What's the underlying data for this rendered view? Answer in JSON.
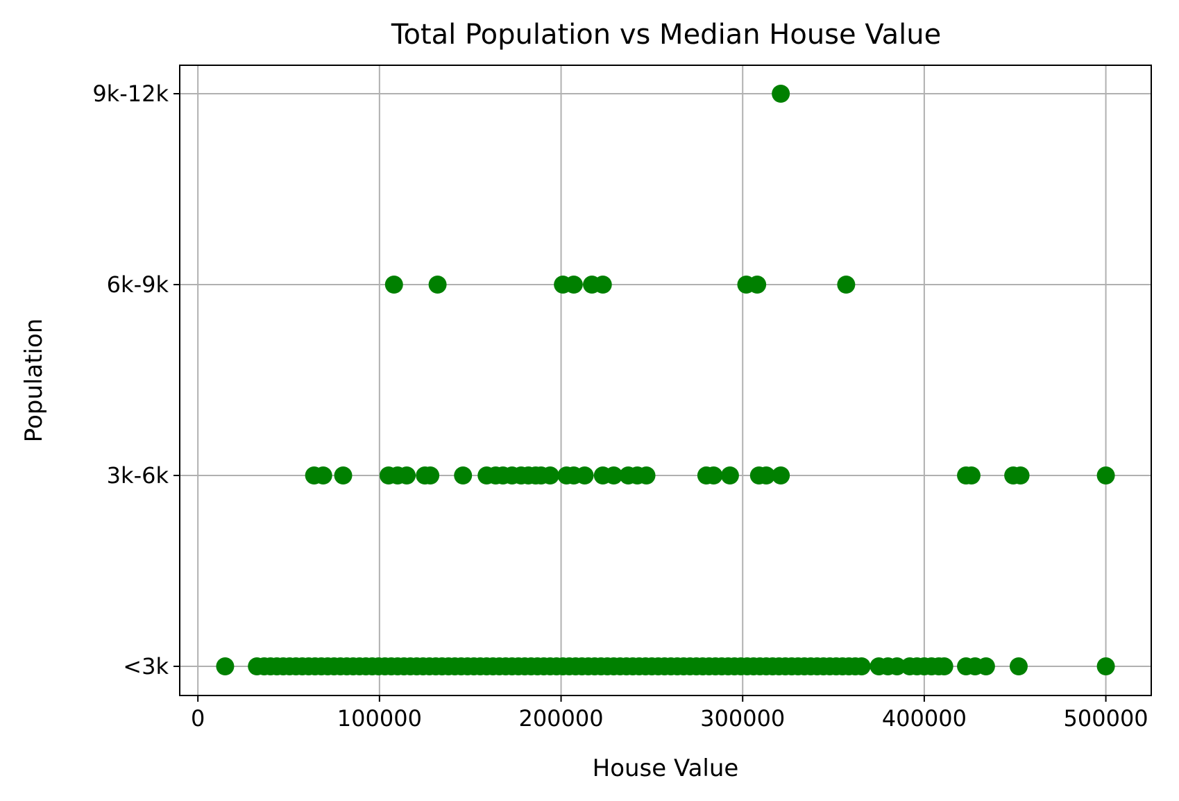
{
  "chart_data": {
    "type": "scatter",
    "title": "Total Population vs Median House Value",
    "xlabel": "House Value",
    "ylabel": "Population",
    "xlim": [
      -10000,
      525000
    ],
    "x_ticks": [
      0,
      100000,
      200000,
      300000,
      400000,
      500000
    ],
    "x_tick_labels": [
      "0",
      "100000",
      "200000",
      "300000",
      "400000",
      "500000"
    ],
    "y_categories": [
      "<3k",
      "3k-6k",
      "6k-9k",
      "9k-12k"
    ],
    "grid": true,
    "legend": "none",
    "marker_color": "#008000",
    "series": [
      {
        "points": [
          {
            "x": 15000,
            "y": "<3k"
          },
          {
            "x": 32500,
            "y": "<3k"
          },
          {
            "x": 36500,
            "y": "<3k"
          },
          {
            "x": 40000,
            "y": "<3k"
          },
          {
            "x": 43500,
            "y": "<3k"
          },
          {
            "x": 47000,
            "y": "<3k"
          },
          {
            "x": 50500,
            "y": "<3k"
          },
          {
            "x": 54000,
            "y": "<3k"
          },
          {
            "x": 57500,
            "y": "<3k"
          },
          {
            "x": 61000,
            "y": "<3k"
          },
          {
            "x": 64500,
            "y": "<3k"
          },
          {
            "x": 68000,
            "y": "<3k"
          },
          {
            "x": 71500,
            "y": "<3k"
          },
          {
            "x": 75000,
            "y": "<3k"
          },
          {
            "x": 78500,
            "y": "<3k"
          },
          {
            "x": 82000,
            "y": "<3k"
          },
          {
            "x": 85500,
            "y": "<3k"
          },
          {
            "x": 89000,
            "y": "<3k"
          },
          {
            "x": 92500,
            "y": "<3k"
          },
          {
            "x": 96000,
            "y": "<3k"
          },
          {
            "x": 99500,
            "y": "<3k"
          },
          {
            "x": 103000,
            "y": "<3k"
          },
          {
            "x": 106500,
            "y": "<3k"
          },
          {
            "x": 110000,
            "y": "<3k"
          },
          {
            "x": 113500,
            "y": "<3k"
          },
          {
            "x": 117000,
            "y": "<3k"
          },
          {
            "x": 120500,
            "y": "<3k"
          },
          {
            "x": 124000,
            "y": "<3k"
          },
          {
            "x": 127500,
            "y": "<3k"
          },
          {
            "x": 131000,
            "y": "<3k"
          },
          {
            "x": 134500,
            "y": "<3k"
          },
          {
            "x": 138000,
            "y": "<3k"
          },
          {
            "x": 141500,
            "y": "<3k"
          },
          {
            "x": 145000,
            "y": "<3k"
          },
          {
            "x": 148500,
            "y": "<3k"
          },
          {
            "x": 152000,
            "y": "<3k"
          },
          {
            "x": 155500,
            "y": "<3k"
          },
          {
            "x": 159000,
            "y": "<3k"
          },
          {
            "x": 162500,
            "y": "<3k"
          },
          {
            "x": 166000,
            "y": "<3k"
          },
          {
            "x": 169500,
            "y": "<3k"
          },
          {
            "x": 173000,
            "y": "<3k"
          },
          {
            "x": 176500,
            "y": "<3k"
          },
          {
            "x": 180000,
            "y": "<3k"
          },
          {
            "x": 183500,
            "y": "<3k"
          },
          {
            "x": 187000,
            "y": "<3k"
          },
          {
            "x": 190500,
            "y": "<3k"
          },
          {
            "x": 194000,
            "y": "<3k"
          },
          {
            "x": 197500,
            "y": "<3k"
          },
          {
            "x": 201000,
            "y": "<3k"
          },
          {
            "x": 204500,
            "y": "<3k"
          },
          {
            "x": 208000,
            "y": "<3k"
          },
          {
            "x": 211500,
            "y": "<3k"
          },
          {
            "x": 215000,
            "y": "<3k"
          },
          {
            "x": 218500,
            "y": "<3k"
          },
          {
            "x": 222000,
            "y": "<3k"
          },
          {
            "x": 225500,
            "y": "<3k"
          },
          {
            "x": 229000,
            "y": "<3k"
          },
          {
            "x": 232500,
            "y": "<3k"
          },
          {
            "x": 236000,
            "y": "<3k"
          },
          {
            "x": 239500,
            "y": "<3k"
          },
          {
            "x": 243000,
            "y": "<3k"
          },
          {
            "x": 246500,
            "y": "<3k"
          },
          {
            "x": 250000,
            "y": "<3k"
          },
          {
            "x": 253500,
            "y": "<3k"
          },
          {
            "x": 257000,
            "y": "<3k"
          },
          {
            "x": 260500,
            "y": "<3k"
          },
          {
            "x": 264000,
            "y": "<3k"
          },
          {
            "x": 267500,
            "y": "<3k"
          },
          {
            "x": 271000,
            "y": "<3k"
          },
          {
            "x": 274500,
            "y": "<3k"
          },
          {
            "x": 278000,
            "y": "<3k"
          },
          {
            "x": 281500,
            "y": "<3k"
          },
          {
            "x": 285000,
            "y": "<3k"
          },
          {
            "x": 288500,
            "y": "<3k"
          },
          {
            "x": 292000,
            "y": "<3k"
          },
          {
            "x": 295500,
            "y": "<3k"
          },
          {
            "x": 299000,
            "y": "<3k"
          },
          {
            "x": 302500,
            "y": "<3k"
          },
          {
            "x": 306000,
            "y": "<3k"
          },
          {
            "x": 309500,
            "y": "<3k"
          },
          {
            "x": 313000,
            "y": "<3k"
          },
          {
            "x": 316500,
            "y": "<3k"
          },
          {
            "x": 320000,
            "y": "<3k"
          },
          {
            "x": 323500,
            "y": "<3k"
          },
          {
            "x": 327000,
            "y": "<3k"
          },
          {
            "x": 330500,
            "y": "<3k"
          },
          {
            "x": 334000,
            "y": "<3k"
          },
          {
            "x": 337500,
            "y": "<3k"
          },
          {
            "x": 341000,
            "y": "<3k"
          },
          {
            "x": 344500,
            "y": "<3k"
          },
          {
            "x": 348000,
            "y": "<3k"
          },
          {
            "x": 351500,
            "y": "<3k"
          },
          {
            "x": 355000,
            "y": "<3k"
          },
          {
            "x": 358500,
            "y": "<3k"
          },
          {
            "x": 362000,
            "y": "<3k"
          },
          {
            "x": 365500,
            "y": "<3k"
          },
          {
            "x": 375000,
            "y": "<3k"
          },
          {
            "x": 380000,
            "y": "<3k"
          },
          {
            "x": 385000,
            "y": "<3k"
          },
          {
            "x": 392000,
            "y": "<3k"
          },
          {
            "x": 396000,
            "y": "<3k"
          },
          {
            "x": 400000,
            "y": "<3k"
          },
          {
            "x": 404000,
            "y": "<3k"
          },
          {
            "x": 408000,
            "y": "<3k"
          },
          {
            "x": 411000,
            "y": "<3k"
          },
          {
            "x": 423000,
            "y": "<3k"
          },
          {
            "x": 428000,
            "y": "<3k"
          },
          {
            "x": 434000,
            "y": "<3k"
          },
          {
            "x": 452000,
            "y": "<3k"
          },
          {
            "x": 500000,
            "y": "<3k"
          },
          {
            "x": 64000,
            "y": "3k-6k"
          },
          {
            "x": 69000,
            "y": "3k-6k"
          },
          {
            "x": 80000,
            "y": "3k-6k"
          },
          {
            "x": 105000,
            "y": "3k-6k"
          },
          {
            "x": 110000,
            "y": "3k-6k"
          },
          {
            "x": 115000,
            "y": "3k-6k"
          },
          {
            "x": 125000,
            "y": "3k-6k"
          },
          {
            "x": 128000,
            "y": "3k-6k"
          },
          {
            "x": 146000,
            "y": "3k-6k"
          },
          {
            "x": 159000,
            "y": "3k-6k"
          },
          {
            "x": 164000,
            "y": "3k-6k"
          },
          {
            "x": 168000,
            "y": "3k-6k"
          },
          {
            "x": 173000,
            "y": "3k-6k"
          },
          {
            "x": 178000,
            "y": "3k-6k"
          },
          {
            "x": 182000,
            "y": "3k-6k"
          },
          {
            "x": 186000,
            "y": "3k-6k"
          },
          {
            "x": 189000,
            "y": "3k-6k"
          },
          {
            "x": 194000,
            "y": "3k-6k"
          },
          {
            "x": 203000,
            "y": "3k-6k"
          },
          {
            "x": 207000,
            "y": "3k-6k"
          },
          {
            "x": 213000,
            "y": "3k-6k"
          },
          {
            "x": 223000,
            "y": "3k-6k"
          },
          {
            "x": 229000,
            "y": "3k-6k"
          },
          {
            "x": 237000,
            "y": "3k-6k"
          },
          {
            "x": 242000,
            "y": "3k-6k"
          },
          {
            "x": 247000,
            "y": "3k-6k"
          },
          {
            "x": 280000,
            "y": "3k-6k"
          },
          {
            "x": 284000,
            "y": "3k-6k"
          },
          {
            "x": 293000,
            "y": "3k-6k"
          },
          {
            "x": 309000,
            "y": "3k-6k"
          },
          {
            "x": 313000,
            "y": "3k-6k"
          },
          {
            "x": 321000,
            "y": "3k-6k"
          },
          {
            "x": 423000,
            "y": "3k-6k"
          },
          {
            "x": 426000,
            "y": "3k-6k"
          },
          {
            "x": 449000,
            "y": "3k-6k"
          },
          {
            "x": 453000,
            "y": "3k-6k"
          },
          {
            "x": 500000,
            "y": "3k-6k"
          },
          {
            "x": 108000,
            "y": "6k-9k"
          },
          {
            "x": 132000,
            "y": "6k-9k"
          },
          {
            "x": 201000,
            "y": "6k-9k"
          },
          {
            "x": 207000,
            "y": "6k-9k"
          },
          {
            "x": 217000,
            "y": "6k-9k"
          },
          {
            "x": 223000,
            "y": "6k-9k"
          },
          {
            "x": 302000,
            "y": "6k-9k"
          },
          {
            "x": 308000,
            "y": "6k-9k"
          },
          {
            "x": 357000,
            "y": "6k-9k"
          },
          {
            "x": 321000,
            "y": "9k-12k"
          }
        ]
      }
    ]
  }
}
